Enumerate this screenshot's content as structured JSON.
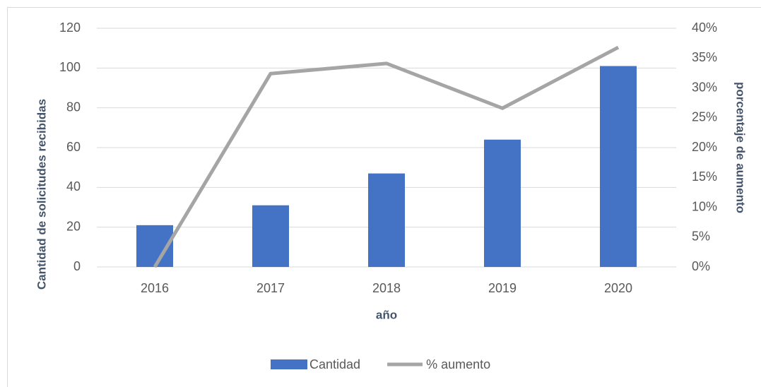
{
  "chart_data": {
    "type": "bar_line",
    "x_label": "año",
    "y_label": "Cantidad de solicitudes recibidas",
    "y2_label": "porcentaje de aumento",
    "categories": [
      "2016",
      "2017",
      "2018",
      "2019",
      "2020"
    ],
    "series": [
      {
        "name": "Cantidad",
        "type": "bar",
        "color": "#4472c4",
        "values": [
          21,
          31,
          47,
          64,
          101
        ]
      },
      {
        "name": "% aumento",
        "type": "line",
        "axis": "y2",
        "color": "#a5a5a5",
        "values": [
          0,
          32.4,
          34.1,
          26.6,
          36.8
        ]
      }
    ],
    "ylim": [
      0,
      120
    ],
    "yticks": [
      0,
      20,
      40,
      60,
      80,
      100,
      120
    ],
    "y2lim": [
      0,
      40
    ],
    "y2ticks": [
      {
        "value": 0,
        "label": "0%"
      },
      {
        "value": 5,
        "label": "5%"
      },
      {
        "value": 10,
        "label": "10%"
      },
      {
        "value": 15,
        "label": "15%"
      },
      {
        "value": 20,
        "label": "20%"
      },
      {
        "value": 25,
        "label": "25%"
      },
      {
        "value": 30,
        "label": "30%"
      },
      {
        "value": 35,
        "label": "35%"
      },
      {
        "value": 40,
        "label": "40%"
      }
    ],
    "grid": true,
    "legend": "bottom"
  }
}
